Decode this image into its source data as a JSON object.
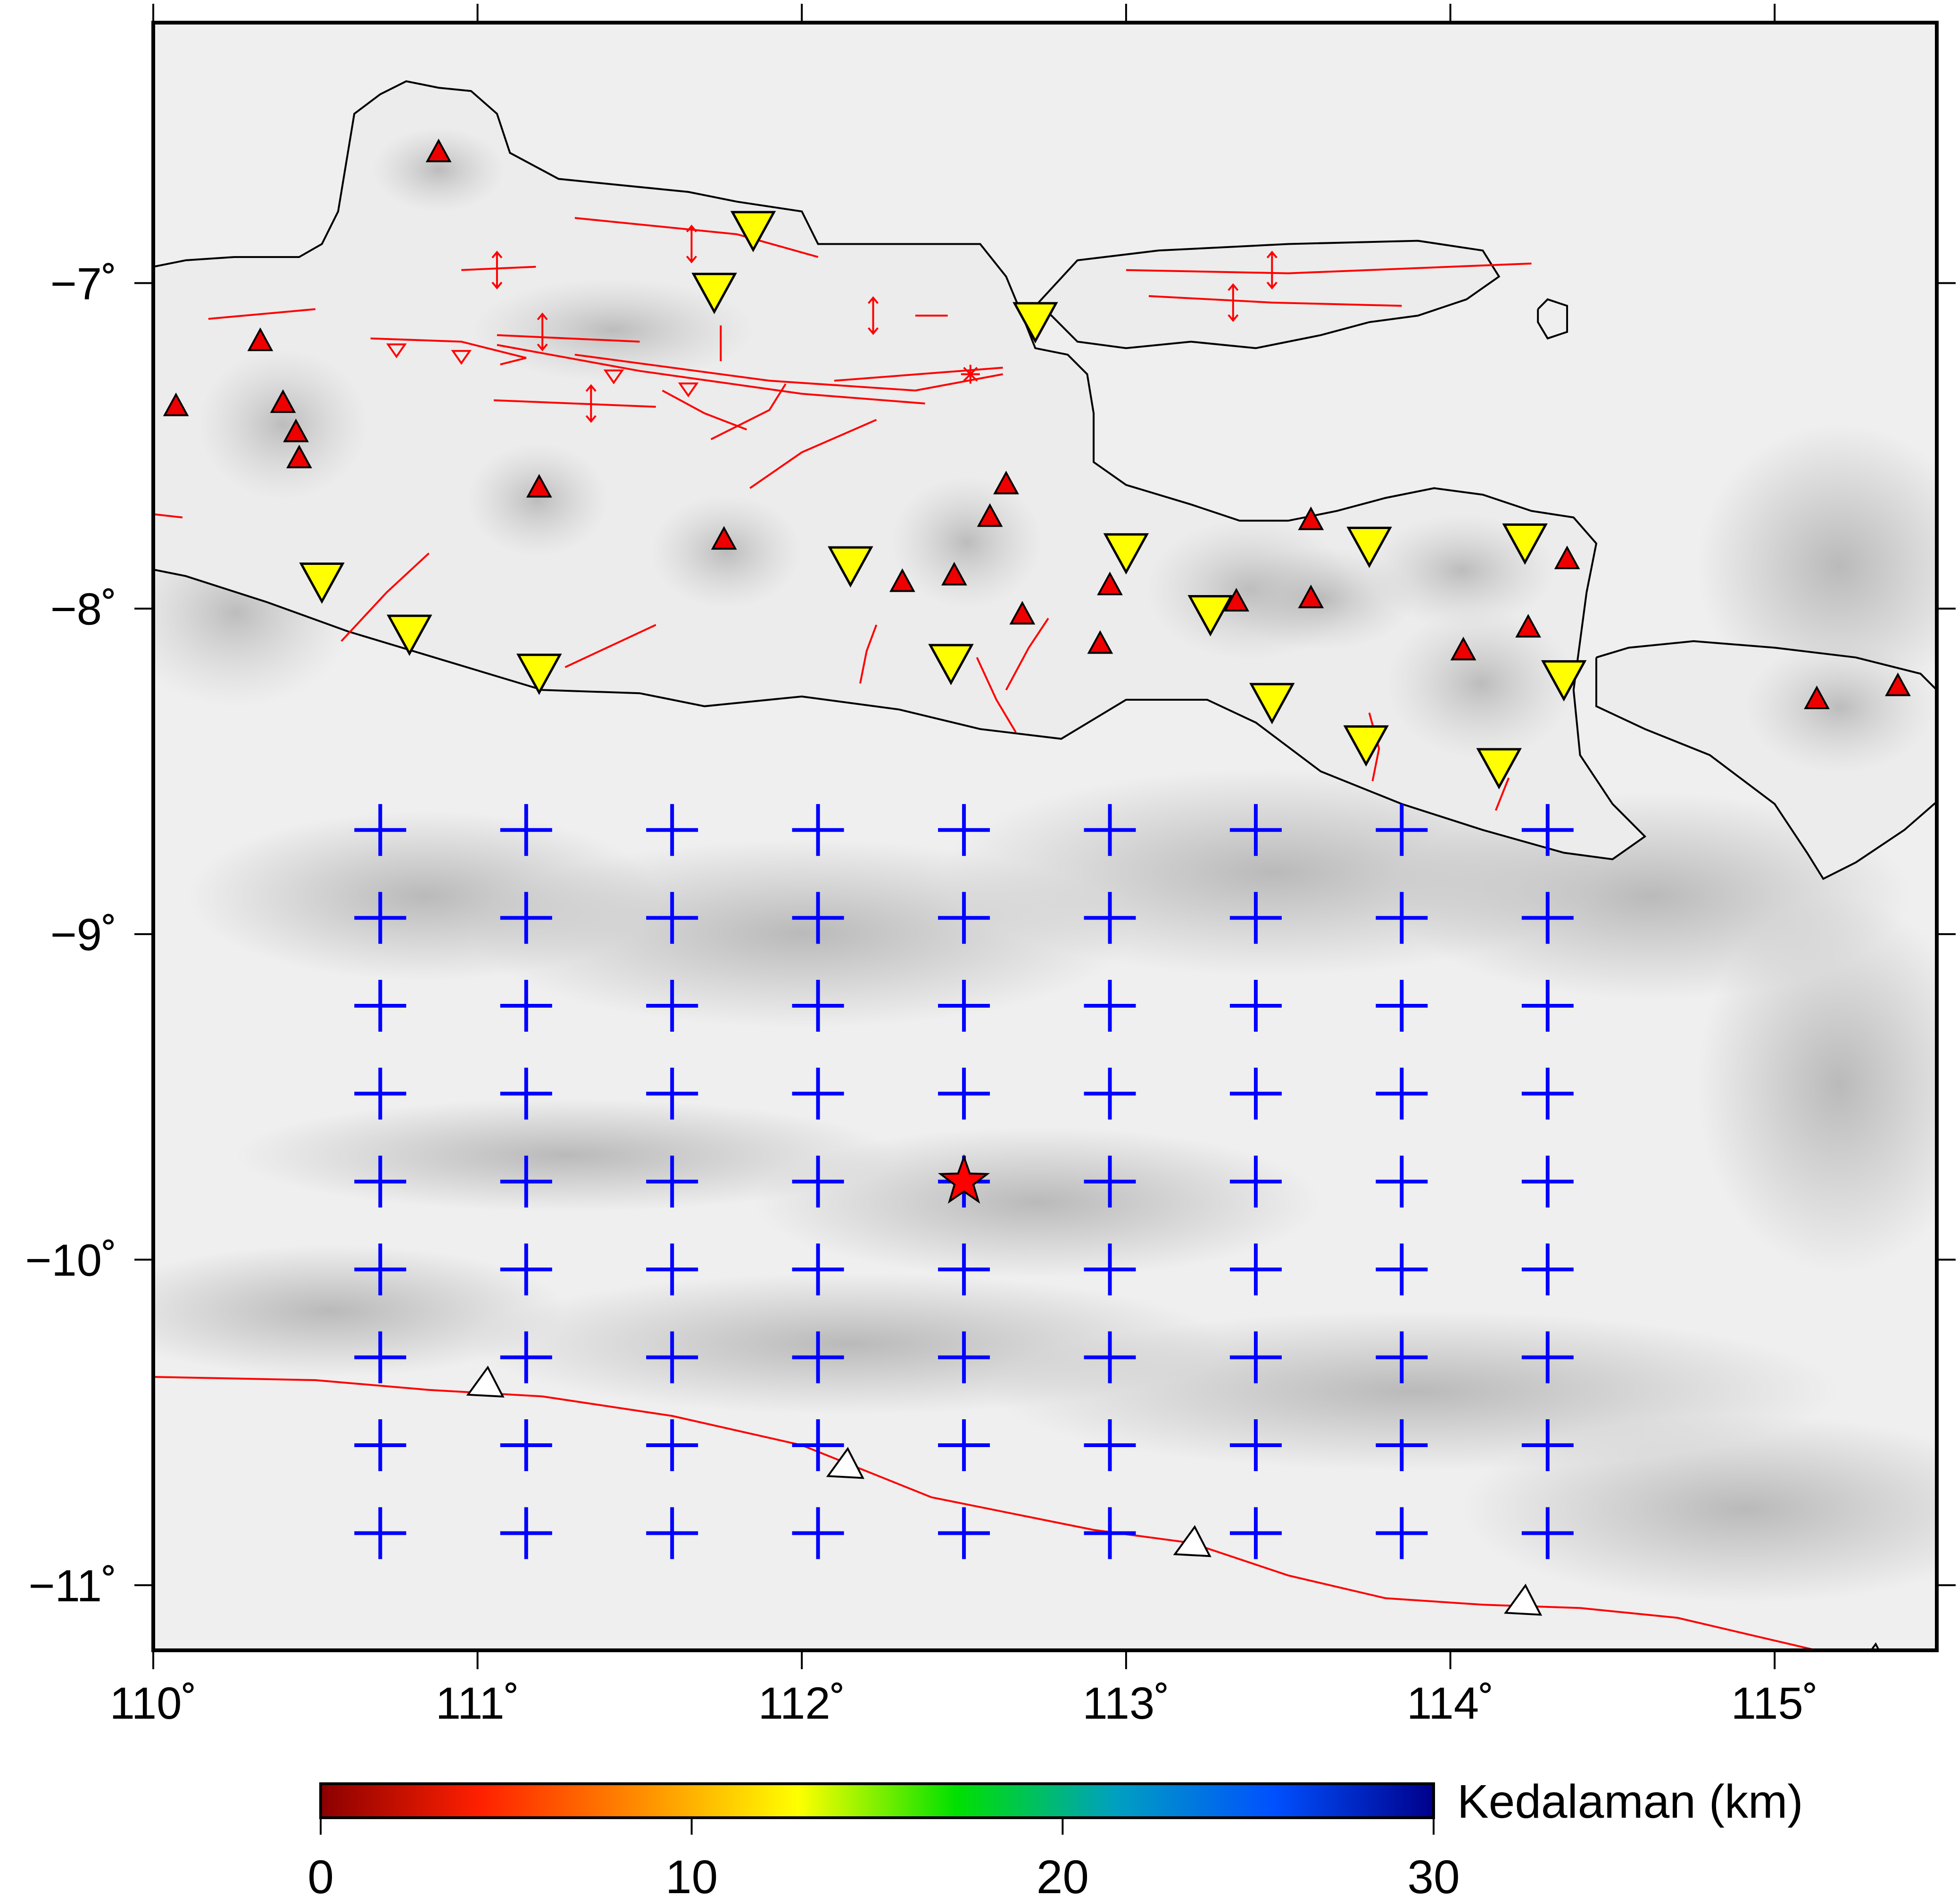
{
  "map": {
    "lon_range": [
      110.0,
      115.5
    ],
    "lat_range": [
      -11.2,
      -6.2
    ],
    "lon_ticks": [
      {
        "value": 110,
        "label": "110˚"
      },
      {
        "value": 111,
        "label": "111˚"
      },
      {
        "value": 112,
        "label": "112˚"
      },
      {
        "value": 113,
        "label": "113˚"
      },
      {
        "value": 114,
        "label": "114˚"
      },
      {
        "value": 115,
        "label": "115˚"
      }
    ],
    "lat_ticks": [
      {
        "value": -7,
        "label": "−7˚"
      },
      {
        "value": -8,
        "label": "−8˚"
      },
      {
        "value": -9,
        "label": "−9˚"
      },
      {
        "value": -10,
        "label": "−10˚"
      },
      {
        "value": -11,
        "label": "−11˚"
      }
    ],
    "colors": {
      "fault": "#ff0000",
      "volcano": "#ee0000",
      "station": "#ffff00",
      "grid_cross": "#0000ff",
      "epicenter": "#ff0000",
      "trench": "#ff0000",
      "coast": "#000000"
    },
    "epicenter": {
      "lon": 112.5,
      "lat": -9.76,
      "icon": "star-icon"
    },
    "grid_nodes": {
      "lons": [
        110.7,
        111.15,
        111.6,
        112.05,
        112.5,
        112.95,
        113.4,
        113.85,
        114.3
      ],
      "lats": [
        -8.68,
        -8.95,
        -9.22,
        -9.49,
        -9.76,
        -10.03,
        -10.3,
        -10.57,
        -10.84
      ]
    },
    "volcanoes": [
      {
        "lon": 110.88,
        "lat": -6.6
      },
      {
        "lon": 110.33,
        "lat": -7.18
      },
      {
        "lon": 110.07,
        "lat": -7.38
      },
      {
        "lon": 110.4,
        "lat": -7.37
      },
      {
        "lon": 110.44,
        "lat": -7.46
      },
      {
        "lon": 110.45,
        "lat": -7.54
      },
      {
        "lon": 111.19,
        "lat": -7.63
      },
      {
        "lon": 111.76,
        "lat": -7.79
      },
      {
        "lon": 112.63,
        "lat": -7.62
      },
      {
        "lon": 112.58,
        "lat": -7.72
      },
      {
        "lon": 112.31,
        "lat": -7.92
      },
      {
        "lon": 112.47,
        "lat": -7.9
      },
      {
        "lon": 112.68,
        "lat": -8.02
      },
      {
        "lon": 112.95,
        "lat": -7.93
      },
      {
        "lon": 112.92,
        "lat": -8.11
      },
      {
        "lon": 113.34,
        "lat": -7.98
      },
      {
        "lon": 113.57,
        "lat": -7.97
      },
      {
        "lon": 113.57,
        "lat": -7.73
      },
      {
        "lon": 114.04,
        "lat": -8.13
      },
      {
        "lon": 114.24,
        "lat": -8.06
      },
      {
        "lon": 114.36,
        "lat": -7.85
      },
      {
        "lon": 115.13,
        "lat": -8.28
      },
      {
        "lon": 115.38,
        "lat": -8.24
      }
    ],
    "stations": [
      {
        "lon": 111.85,
        "lat": -6.84
      },
      {
        "lon": 111.73,
        "lat": -7.03
      },
      {
        "lon": 112.72,
        "lat": -7.12
      },
      {
        "lon": 110.52,
        "lat": -7.92
      },
      {
        "lon": 110.79,
        "lat": -8.08
      },
      {
        "lon": 111.19,
        "lat": -8.2
      },
      {
        "lon": 112.15,
        "lat": -7.87
      },
      {
        "lon": 112.46,
        "lat": -8.17
      },
      {
        "lon": 113.0,
        "lat": -7.83
      },
      {
        "lon": 113.26,
        "lat": -8.02
      },
      {
        "lon": 113.45,
        "lat": -8.29
      },
      {
        "lon": 113.74,
        "lat": -8.42
      },
      {
        "lon": 113.75,
        "lat": -7.81
      },
      {
        "lon": 114.23,
        "lat": -7.8
      },
      {
        "lon": 114.35,
        "lat": -8.22
      },
      {
        "lon": 114.15,
        "lat": -8.49
      }
    ],
    "trench_line": [
      [
        110.0,
        -10.36
      ],
      [
        110.5,
        -10.37
      ],
      [
        110.85,
        -10.4
      ],
      [
        111.2,
        -10.42
      ],
      [
        111.6,
        -10.48
      ],
      [
        112.0,
        -10.57
      ],
      [
        112.4,
        -10.73
      ],
      [
        112.9,
        -10.83
      ],
      [
        113.2,
        -10.87
      ],
      [
        113.5,
        -10.97
      ],
      [
        113.8,
        -11.04
      ],
      [
        114.1,
        -11.06
      ],
      [
        114.4,
        -11.07
      ],
      [
        114.7,
        -11.1
      ],
      [
        115.0,
        -11.17
      ],
      [
        115.3,
        -11.24
      ],
      [
        115.5,
        -11.3
      ]
    ],
    "trench_teeth": [
      {
        "lon": 111.02,
        "lat": -10.38
      },
      {
        "lon": 112.13,
        "lat": -10.63
      },
      {
        "lon": 113.2,
        "lat": -10.87
      },
      {
        "lon": 114.22,
        "lat": -11.05
      },
      {
        "lon": 115.3,
        "lat": -11.23
      }
    ],
    "faults": [
      [
        [
          111.3,
          -6.8
        ],
        [
          111.8,
          -6.85
        ],
        [
          112.05,
          -6.92
        ]
      ],
      [
        [
          110.95,
          -6.96
        ],
        [
          111.18,
          -6.95
        ]
      ],
      [
        [
          112.35,
          -7.1
        ],
        [
          112.45,
          -7.1
        ]
      ],
      [
        [
          110.17,
          -7.11
        ],
        [
          110.5,
          -7.08
        ]
      ],
      [
        [
          110.67,
          -7.17
        ],
        [
          110.95,
          -7.18
        ],
        [
          111.15,
          -7.23
        ],
        [
          111.07,
          -7.25
        ]
      ],
      [
        [
          111.06,
          -7.16
        ],
        [
          111.5,
          -7.18
        ]
      ],
      [
        [
          111.06,
          -7.19
        ],
        [
          111.5,
          -7.27
        ],
        [
          112.0,
          -7.34
        ],
        [
          112.38,
          -7.37
        ]
      ],
      [
        [
          111.3,
          -7.22
        ],
        [
          111.9,
          -7.3
        ],
        [
          112.35,
          -7.33
        ],
        [
          112.62,
          -7.28
        ]
      ],
      [
        [
          112.1,
          -7.3
        ],
        [
          112.62,
          -7.26
        ]
      ],
      [
        [
          111.05,
          -7.36
        ],
        [
          111.55,
          -7.38
        ]
      ],
      [
        [
          111.57,
          -7.33
        ],
        [
          111.7,
          -7.4
        ],
        [
          111.83,
          -7.45
        ]
      ],
      [
        [
          111.72,
          -7.48
        ],
        [
          111.9,
          -7.39
        ],
        [
          111.95,
          -7.31
        ]
      ],
      [
        [
          111.84,
          -7.63
        ],
        [
          112.0,
          -7.52
        ],
        [
          112.23,
          -7.42
        ]
      ],
      [
        [
          110.58,
          -8.1
        ],
        [
          110.72,
          -7.95
        ],
        [
          110.85,
          -7.83
        ]
      ],
      [
        [
          111.27,
          -8.18
        ],
        [
          111.55,
          -8.05
        ]
      ],
      [
        [
          112.18,
          -8.23
        ],
        [
          112.2,
          -8.13
        ],
        [
          112.23,
          -8.05
        ]
      ],
      [
        [
          112.54,
          -8.15
        ],
        [
          112.6,
          -8.28
        ],
        [
          112.66,
          -8.38
        ]
      ],
      [
        [
          112.63,
          -8.25
        ],
        [
          112.7,
          -8.12
        ],
        [
          112.76,
          -8.03
        ]
      ],
      [
        [
          113.75,
          -8.32
        ],
        [
          113.78,
          -8.43
        ],
        [
          113.76,
          -8.53
        ]
      ],
      [
        [
          114.14,
          -8.62
        ],
        [
          114.18,
          -8.52
        ]
      ],
      [
        [
          113.0,
          -6.96
        ],
        [
          113.5,
          -6.97
        ],
        [
          114.0,
          -6.95
        ],
        [
          114.25,
          -6.94
        ]
      ],
      [
        [
          113.07,
          -7.04
        ],
        [
          113.45,
          -7.06
        ],
        [
          113.85,
          -7.07
        ]
      ],
      [
        [
          110.0,
          -7.71
        ],
        [
          110.09,
          -7.72
        ]
      ],
      [
        [
          111.75,
          -7.13
        ],
        [
          111.75,
          -7.24
        ]
      ]
    ],
    "fold_arrows": [
      {
        "lon": 111.06,
        "lat": -6.96
      },
      {
        "lon": 111.66,
        "lat": -6.88
      },
      {
        "lon": 111.2,
        "lat": -7.15
      },
      {
        "lon": 112.22,
        "lat": -7.1
      },
      {
        "lon": 111.35,
        "lat": -7.37
      },
      {
        "lon": 113.45,
        "lat": -6.96
      },
      {
        "lon": 113.33,
        "lat": -7.06
      }
    ],
    "thrust_marks": [
      {
        "lon": 110.75,
        "lat": -7.2
      },
      {
        "lon": 110.95,
        "lat": -7.22
      },
      {
        "lon": 111.42,
        "lat": -7.28
      },
      {
        "lon": 111.65,
        "lat": -7.32
      }
    ],
    "strike_slip_star": {
      "lon": 112.52,
      "lat": -7.28
    },
    "coastline_java": [
      [
        110.0,
        -6.95
      ],
      [
        110.1,
        -6.93
      ],
      [
        110.25,
        -6.92
      ],
      [
        110.45,
        -6.92
      ],
      [
        110.52,
        -6.88
      ],
      [
        110.57,
        -6.78
      ],
      [
        110.6,
        -6.6
      ],
      [
        110.62,
        -6.48
      ],
      [
        110.7,
        -6.42
      ],
      [
        110.78,
        -6.38
      ],
      [
        110.88,
        -6.4
      ],
      [
        110.98,
        -6.41
      ],
      [
        111.06,
        -6.48
      ],
      [
        111.1,
        -6.6
      ],
      [
        111.25,
        -6.68
      ],
      [
        111.45,
        -6.7
      ],
      [
        111.65,
        -6.72
      ],
      [
        111.8,
        -6.75
      ],
      [
        112.0,
        -6.78
      ],
      [
        112.05,
        -6.88
      ],
      [
        112.3,
        -6.88
      ],
      [
        112.55,
        -6.88
      ],
      [
        112.63,
        -6.98
      ],
      [
        112.68,
        -7.1
      ],
      [
        112.72,
        -7.2
      ],
      [
        112.82,
        -7.22
      ],
      [
        112.88,
        -7.28
      ],
      [
        112.9,
        -7.4
      ],
      [
        112.9,
        -7.55
      ],
      [
        113.0,
        -7.62
      ],
      [
        113.2,
        -7.68
      ],
      [
        113.35,
        -7.73
      ],
      [
        113.5,
        -7.73
      ],
      [
        113.65,
        -7.7
      ],
      [
        113.8,
        -7.66
      ],
      [
        113.95,
        -7.63
      ],
      [
        114.1,
        -7.65
      ],
      [
        114.25,
        -7.7
      ],
      [
        114.38,
        -7.72
      ],
      [
        114.45,
        -7.8
      ],
      [
        114.42,
        -7.95
      ],
      [
        114.4,
        -8.1
      ],
      [
        114.38,
        -8.25
      ],
      [
        114.4,
        -8.45
      ],
      [
        114.5,
        -8.6
      ],
      [
        114.6,
        -8.7
      ],
      [
        114.5,
        -8.77
      ],
      [
        114.35,
        -8.75
      ],
      [
        114.1,
        -8.68
      ],
      [
        113.85,
        -8.6
      ],
      [
        113.6,
        -8.5
      ],
      [
        113.4,
        -8.35
      ],
      [
        113.25,
        -8.28
      ],
      [
        113.0,
        -8.28
      ],
      [
        112.8,
        -8.4
      ],
      [
        112.55,
        -8.37
      ],
      [
        112.3,
        -8.31
      ],
      [
        112.0,
        -8.27
      ],
      [
        111.7,
        -8.3
      ],
      [
        111.5,
        -8.26
      ],
      [
        111.2,
        -8.25
      ],
      [
        110.9,
        -8.16
      ],
      [
        110.6,
        -8.07
      ],
      [
        110.35,
        -7.98
      ],
      [
        110.1,
        -7.9
      ],
      [
        110.0,
        -7.88
      ]
    ],
    "coastline_madura": [
      [
        112.73,
        -7.06
      ],
      [
        112.85,
        -6.93
      ],
      [
        113.1,
        -6.9
      ],
      [
        113.5,
        -6.88
      ],
      [
        113.9,
        -6.87
      ],
      [
        114.1,
        -6.9
      ],
      [
        114.15,
        -6.98
      ],
      [
        114.05,
        -7.05
      ],
      [
        113.9,
        -7.1
      ],
      [
        113.75,
        -7.12
      ],
      [
        113.6,
        -7.16
      ],
      [
        113.4,
        -7.2
      ],
      [
        113.2,
        -7.18
      ],
      [
        113.0,
        -7.2
      ],
      [
        112.85,
        -7.18
      ],
      [
        112.73,
        -7.06
      ]
    ],
    "coastline_bali": [
      [
        114.45,
        -8.15
      ],
      [
        114.55,
        -8.12
      ],
      [
        114.75,
        -8.1
      ],
      [
        115.0,
        -8.12
      ],
      [
        115.25,
        -8.15
      ],
      [
        115.45,
        -8.2
      ],
      [
        115.55,
        -8.3
      ],
      [
        115.55,
        -8.55
      ],
      [
        115.4,
        -8.68
      ],
      [
        115.25,
        -8.78
      ],
      [
        115.15,
        -8.83
      ],
      [
        115.1,
        -8.75
      ],
      [
        115.0,
        -8.6
      ],
      [
        114.8,
        -8.45
      ],
      [
        114.6,
        -8.37
      ],
      [
        114.45,
        -8.3
      ],
      [
        114.45,
        -8.15
      ]
    ],
    "island_small": [
      [
        114.27,
        -7.08
      ],
      [
        114.3,
        -7.05
      ],
      [
        114.36,
        -7.07
      ],
      [
        114.36,
        -7.15
      ],
      [
        114.3,
        -7.17
      ],
      [
        114.27,
        -7.12
      ],
      [
        114.27,
        -7.08
      ]
    ]
  },
  "colorbar": {
    "title": "Kedalaman (km)",
    "min": 0,
    "max": 30,
    "ticks": [
      {
        "value": 0,
        "label": "0"
      },
      {
        "value": 10,
        "label": "10"
      },
      {
        "value": 20,
        "label": "20"
      },
      {
        "value": 30,
        "label": "30"
      }
    ],
    "stops": [
      "#8b0000",
      "#ff2000",
      "#ff8c00",
      "#ffff00",
      "#00e000",
      "#00a0c0",
      "#0050ff",
      "#00008b"
    ]
  }
}
